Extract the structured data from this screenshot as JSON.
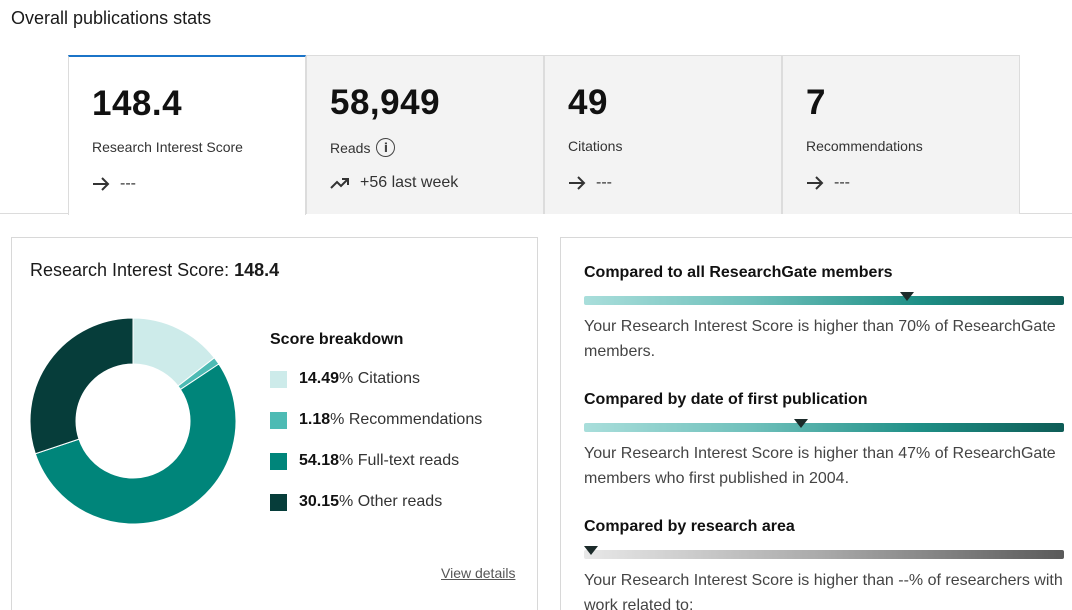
{
  "page_title": "Overall publications stats",
  "stats": [
    {
      "value": "148.4",
      "label": "Research Interest Score",
      "trend": "---",
      "active": true
    },
    {
      "value": "58,949",
      "label": "Reads",
      "trend": "+56 last week"
    },
    {
      "value": "49",
      "label": "Citations",
      "trend": "---"
    },
    {
      "value": "7",
      "label": "Recommendations",
      "trend": "---"
    }
  ],
  "info_icon_glyph": "i",
  "score_card": {
    "heading_label": "Research Interest Score: ",
    "heading_value": "148.4",
    "breakdown_title": "Score breakdown",
    "breakdown": [
      {
        "percent": "14.49",
        "suffix": "% Citations",
        "value": 14.49,
        "color": "#cdebea"
      },
      {
        "percent": "1.18",
        "suffix": "% Recommendations",
        "value": 1.18,
        "color": "#4dbbb4"
      },
      {
        "percent": "54.18",
        "suffix": "% Full-text reads",
        "value": 54.18,
        "color": "#00857a"
      },
      {
        "percent": "30.15",
        "suffix": "% Other reads",
        "value": 30.15,
        "color": "#063d3a"
      }
    ],
    "view_details": "View details"
  },
  "comparisons": [
    {
      "title": "Compared to all ResearchGate members",
      "percentile": 70,
      "style": "teal",
      "text": "Your Research Interest Score is higher than 70% of ResearchGate members."
    },
    {
      "title": "Compared by date of first publication",
      "percentile": 47,
      "style": "teal",
      "text": "Your Research Interest Score is higher than 47% of ResearchGate members who first published in 2004."
    },
    {
      "title": "Compared by research area",
      "percentile": 0,
      "style": "grey",
      "text": "Your Research Interest Score is higher than --% of researchers with work related to:"
    }
  ],
  "colors": {
    "accent": "#1b74c8",
    "teal_dark": "#0e5c56"
  }
}
